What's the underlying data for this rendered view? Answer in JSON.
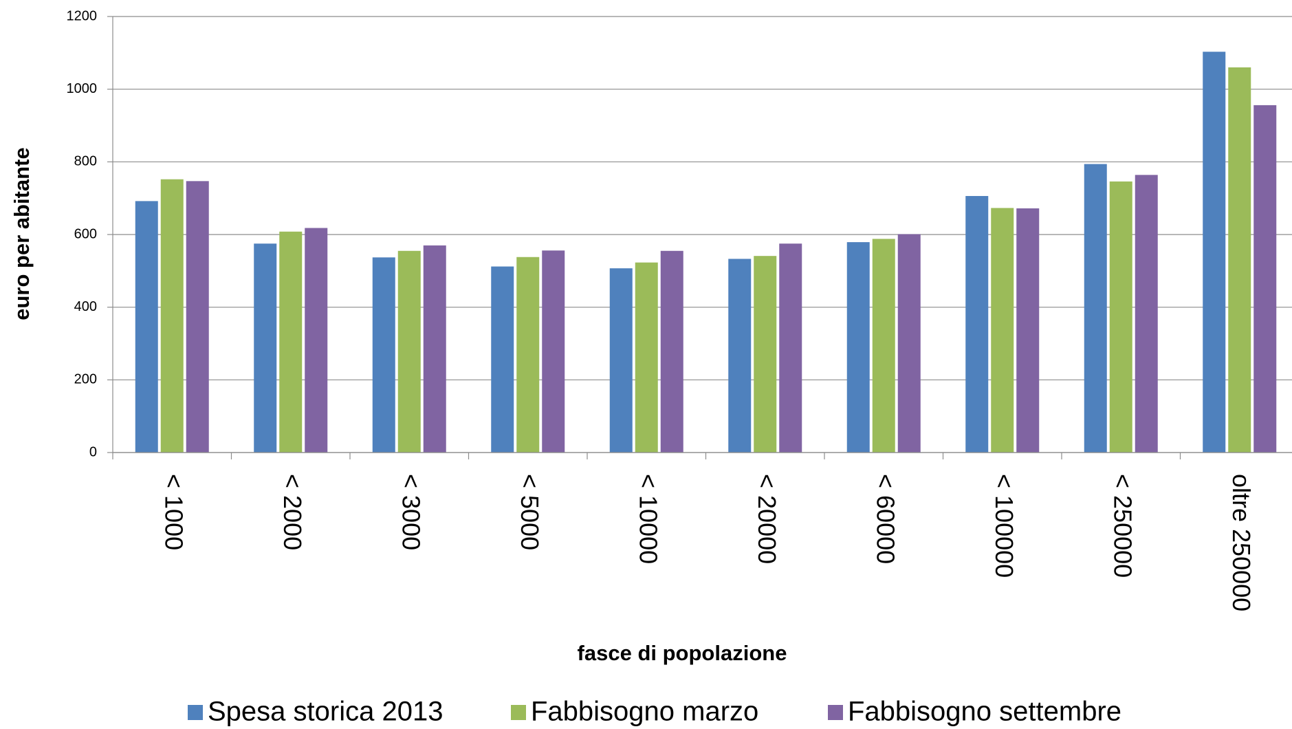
{
  "chart_data": {
    "type": "bar",
    "x_label": "fasce di popolazione",
    "y_label": "euro per abitante",
    "categories": [
      "< 1000",
      "< 2000",
      "< 3000",
      "< 5000",
      "< 10000",
      "< 20000",
      "< 60000",
      "< 100000",
      "< 250000",
      "oltre 250000"
    ],
    "series": [
      {
        "name": "Spesa storica 2013",
        "color": "#4f81bd",
        "values": [
          692,
          575,
          537,
          512,
          507,
          533,
          579,
          706,
          794,
          1103
        ]
      },
      {
        "name": "Fabbisogno marzo",
        "color": "#9bbb59",
        "values": [
          752,
          608,
          555,
          538,
          523,
          541,
          588,
          673,
          746,
          1060
        ]
      },
      {
        "name": "Fabbisogno settembre",
        "color": "#8064a2",
        "values": [
          747,
          618,
          570,
          556,
          555,
          575,
          601,
          672,
          764,
          956
        ]
      }
    ],
    "ylim": [
      0,
      1200
    ],
    "yticks": [
      0,
      200,
      400,
      600,
      800,
      1000,
      1200
    ],
    "grid": true,
    "legend": "bottom"
  }
}
